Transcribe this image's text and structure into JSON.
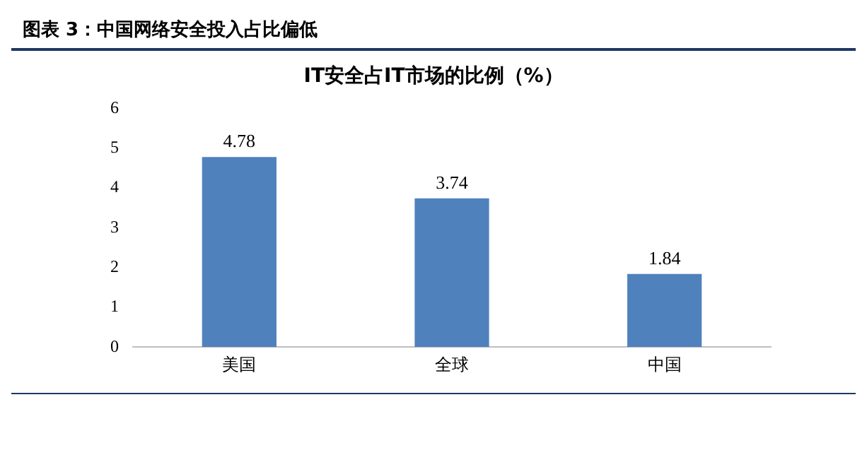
{
  "chart_data": {
    "type": "bar",
    "title": "图表 3：中国网络安全投入占比偏低",
    "subtitle": "IT安全占IT市场的比例（%）",
    "categories": [
      "美国",
      "全球",
      "中国"
    ],
    "values": [
      4.78,
      3.74,
      1.84
    ],
    "color": "#4f81bd",
    "ylim": [
      0,
      6
    ],
    "yticks": [
      0,
      1,
      2,
      3,
      4,
      5,
      6
    ],
    "grid": false,
    "data_labels": true,
    "legend": false
  }
}
